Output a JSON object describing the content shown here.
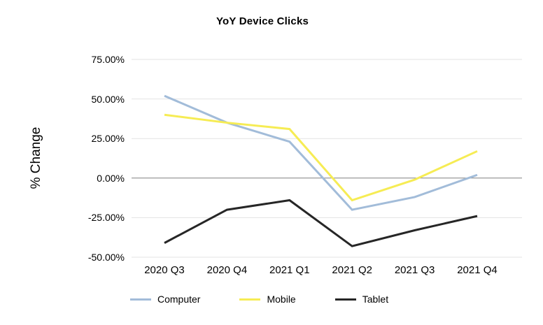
{
  "chart_data": {
    "type": "line",
    "title": "YoY Device Clicks",
    "ylabel": "% Change",
    "xlabel": "",
    "categories": [
      "2020 Q3",
      "2020 Q4",
      "2021 Q1",
      "2021 Q2",
      "2021 Q3",
      "2021 Q4"
    ],
    "series": [
      {
        "name": "Computer",
        "color": "#a2bcd9",
        "values": [
          52,
          35,
          23,
          -20,
          -12,
          2
        ]
      },
      {
        "name": "Mobile",
        "color": "#f6ec54",
        "values": [
          40,
          35,
          31,
          -14,
          -1,
          17
        ]
      },
      {
        "name": "Tablet",
        "color": "#262626",
        "values": [
          -41,
          -20,
          -14,
          -43,
          -33,
          -24
        ]
      }
    ],
    "yticks": [
      75,
      50,
      25,
      0,
      -25,
      -50
    ],
    "ytick_labels": [
      "75.00%",
      "50.00%",
      "25.00%",
      "0.00%",
      "-25.00%",
      "-50.00%"
    ],
    "ylim": [
      -50,
      75
    ],
    "grid": true,
    "gridline_color": "#e3e3e3",
    "zero_line_color": "#808080",
    "legend_position": "bottom"
  }
}
